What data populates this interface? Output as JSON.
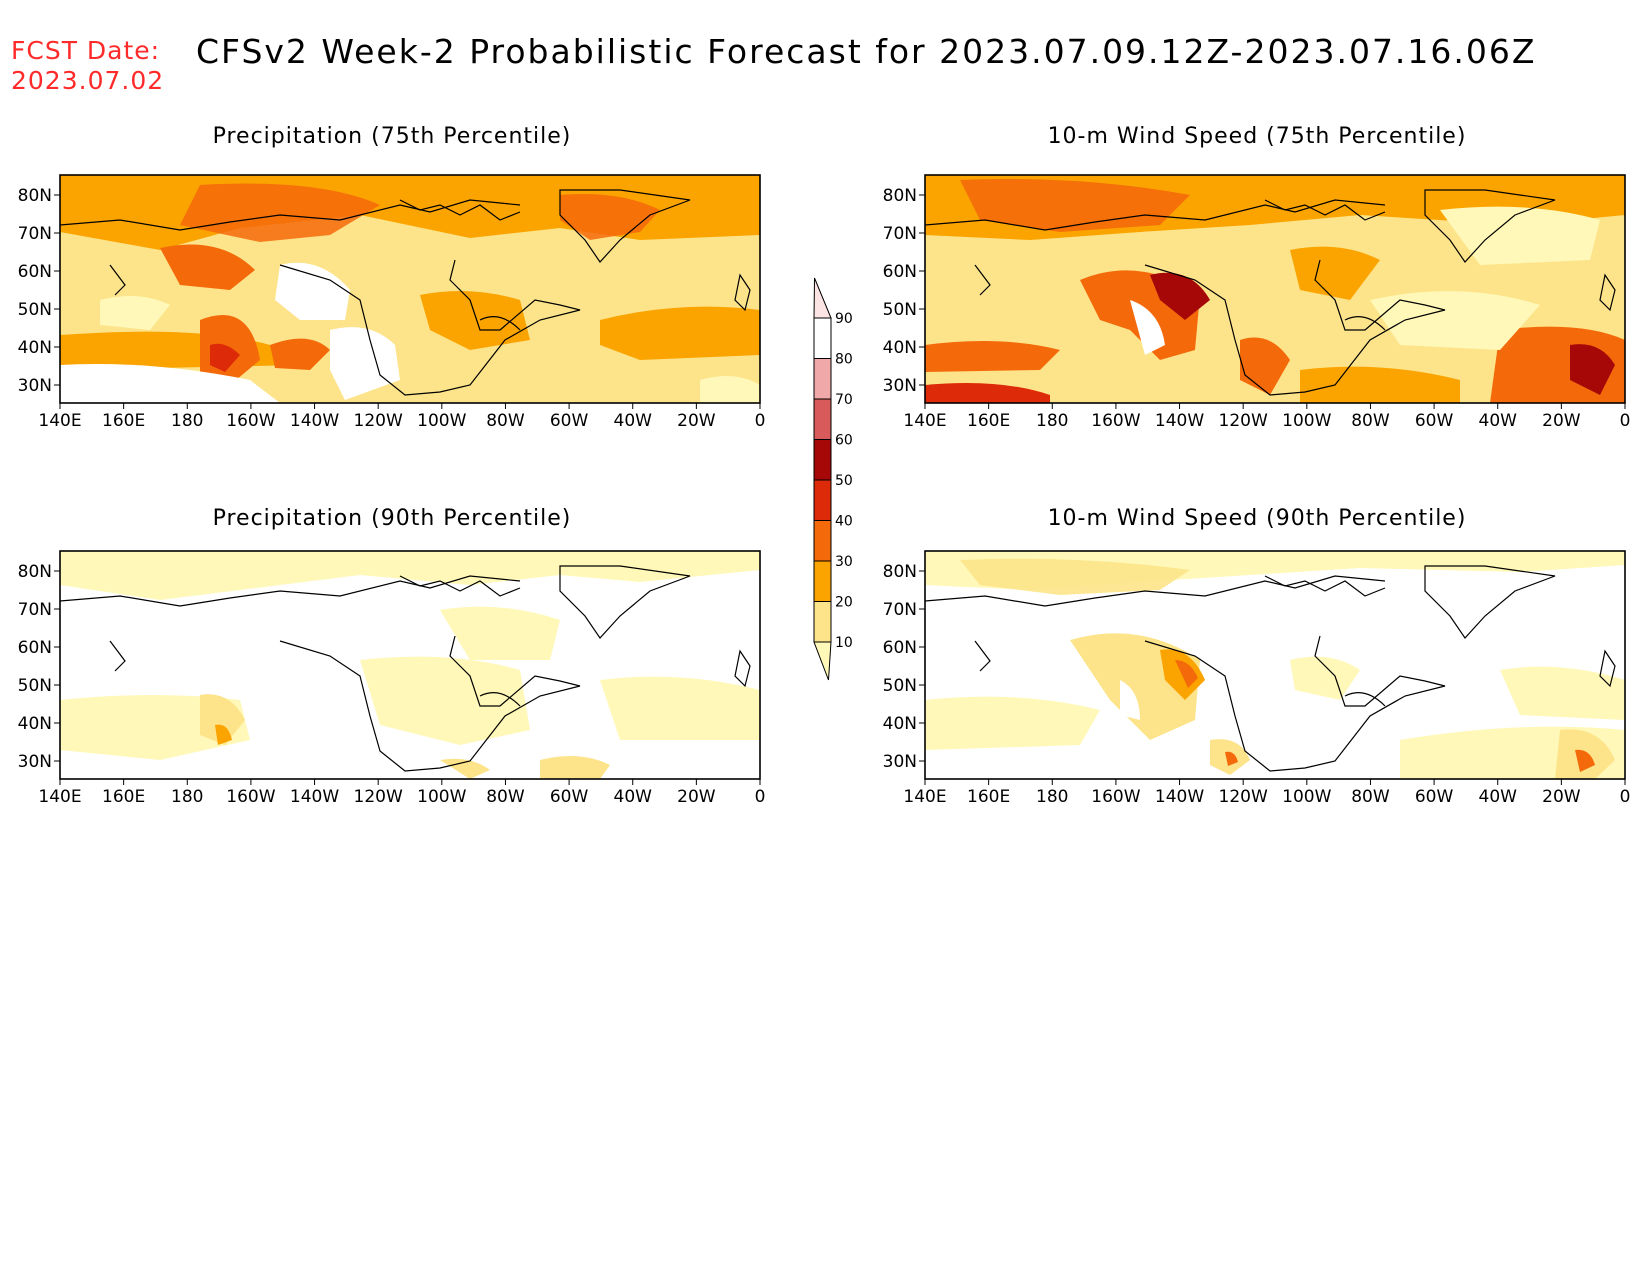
{
  "header": {
    "fcst_label": "FCST Date:",
    "fcst_date": "2023.07.02",
    "title": "CFSv2 Week-2 Probabilistic Forecast for 2023.07.09.12Z-2023.07.16.06Z"
  },
  "panels": [
    {
      "id": "precip75",
      "title": "Precipitation (75th Percentile)"
    },
    {
      "id": "wind75",
      "title": "10-m Wind Speed (75th Percentile)"
    },
    {
      "id": "precip90",
      "title": "Precipitation (90th Percentile)"
    },
    {
      "id": "wind90",
      "title": "10-m Wind Speed (90th Percentile)"
    }
  ],
  "axes": {
    "lat_ticks": [
      "80N",
      "70N",
      "60N",
      "50N",
      "40N",
      "30N"
    ],
    "lon_ticks": [
      "140E",
      "160E",
      "180",
      "160W",
      "140W",
      "120W",
      "100W",
      "80W",
      "60W",
      "40W",
      "20W",
      "0"
    ]
  },
  "colorbar": {
    "levels": [
      "10",
      "20",
      "30",
      "40",
      "50",
      "60",
      "70",
      "80",
      "90"
    ],
    "colors": [
      "#fff8b8",
      "#fde48a",
      "#fba400",
      "#f46a0a",
      "#dd2a08",
      "#a60808",
      "#d85a5a",
      "#f1a8a8",
      "#fde4e4"
    ]
  }
}
